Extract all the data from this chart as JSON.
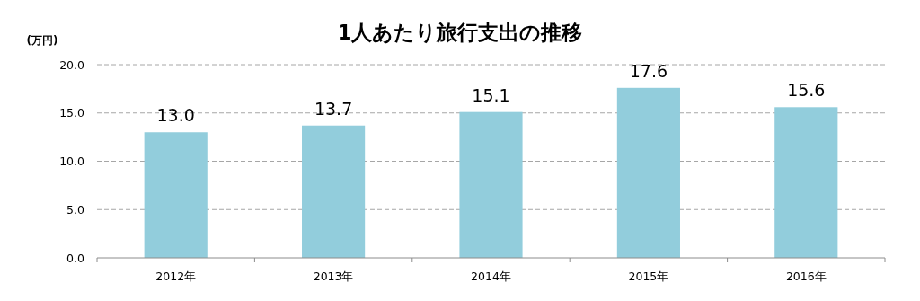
{
  "chart_data": {
    "type": "bar",
    "title": "1人あたり旅行支出の推移",
    "ylabel": "(万円)",
    "categories": [
      "2012年",
      "2013年",
      "2014年",
      "2015年",
      "2016年"
    ],
    "values": [
      13.0,
      13.7,
      15.1,
      17.6,
      15.6
    ],
    "value_labels": [
      "13.0",
      "13.7",
      "15.1",
      "17.6",
      "15.6"
    ],
    "color": "#92cddc",
    "ylim": [
      0,
      20
    ],
    "yticks": [
      {
        "value": 0,
        "label": "0.0"
      },
      {
        "value": 5,
        "label": "5.0"
      },
      {
        "value": 10,
        "label": "10.0"
      },
      {
        "value": 15,
        "label": "15.0"
      },
      {
        "value": 20,
        "label": "20.0"
      }
    ],
    "grid": "y"
  }
}
